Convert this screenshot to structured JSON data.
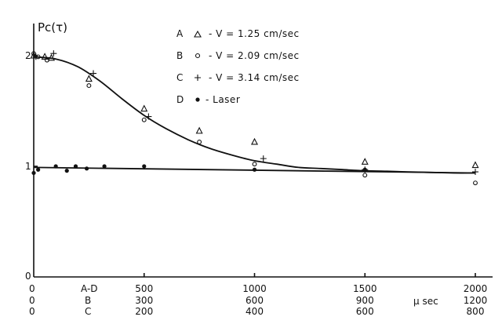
{
  "chart_data": {
    "type": "scatter",
    "ylabel": "Pc(τ)",
    "unit_label": "μ sec",
    "xlim": [
      0,
      2000
    ],
    "ylim": [
      0,
      2.2
    ],
    "yticks": [
      "0",
      "1",
      "2"
    ],
    "xtick_rows": [
      {
        "label": "A-D",
        "values": [
          "0",
          "500",
          "1000",
          "1500",
          "2000"
        ]
      },
      {
        "label": "B",
        "values": [
          "0",
          "300",
          "600",
          "900",
          "1200"
        ]
      },
      {
        "label": "C",
        "values": [
          "0",
          "200",
          "400",
          "600",
          "800"
        ]
      }
    ],
    "series": [
      {
        "key": "A",
        "name": "- V = 1.25 cm/sec",
        "marker": "triangle",
        "x": [
          0,
          50,
          80,
          250,
          500,
          750,
          1000,
          1500,
          2000
        ],
        "y": [
          2.0,
          1.99,
          1.98,
          1.79,
          1.52,
          1.32,
          1.22,
          1.04,
          1.01
        ]
      },
      {
        "key": "B",
        "name": "- V = 2.09 cm/sec",
        "marker": "circle",
        "x": [
          0,
          20,
          60,
          250,
          500,
          750,
          1000,
          1500,
          2000
        ],
        "y": [
          2.02,
          1.99,
          1.96,
          1.73,
          1.42,
          1.22,
          1.02,
          0.92,
          0.85
        ],
        "x_scale_row": "A-D"
      },
      {
        "key": "C",
        "name": "- V = 3.14 cm/sec",
        "marker": "plus",
        "x": [
          10,
          90,
          270,
          520,
          1040,
          1500,
          2000
        ],
        "y": [
          1.99,
          2.02,
          1.84,
          1.45,
          1.07,
          0.97,
          0.95
        ]
      },
      {
        "key": "D",
        "name": "- Laser",
        "marker": "dot",
        "x": [
          0,
          20,
          100,
          150,
          190,
          240,
          320,
          500,
          1000,
          1500
        ],
        "y": [
          0.94,
          0.97,
          1.0,
          0.96,
          1.0,
          0.98,
          1.0,
          1.0,
          0.97,
          0.97
        ]
      }
    ],
    "fit_curves": [
      {
        "x": [
          0,
          100,
          200,
          300,
          400,
          500,
          600,
          700,
          800,
          900,
          1000,
          1100,
          1200,
          1300,
          1400,
          1500,
          1600,
          1700,
          1800,
          1900,
          2000
        ],
        "y": [
          1.99,
          1.97,
          1.9,
          1.77,
          1.61,
          1.46,
          1.34,
          1.24,
          1.16,
          1.1,
          1.05,
          1.02,
          0.99,
          0.98,
          0.97,
          0.96,
          0.955,
          0.95,
          0.945,
          0.94,
          0.94
        ]
      },
      {
        "x": [
          0,
          2000
        ],
        "y": [
          0.99,
          0.94
        ]
      }
    ]
  }
}
